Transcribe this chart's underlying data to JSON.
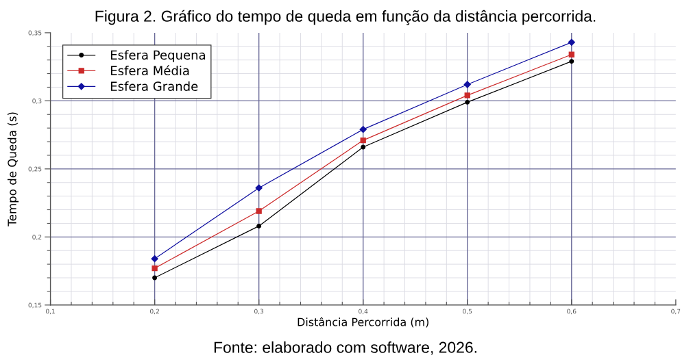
{
  "chart_data": {
    "type": "line",
    "title": "Figura 2. Gráfico do tempo de queda em função da distância percorrida.",
    "xlabel": "Distância Percorrida (m)",
    "ylabel": "Tempo de Queda (s)",
    "annotations": [
      "Fonte: elaborado com software, 2026."
    ],
    "x": [
      0.2,
      0.3,
      0.4,
      0.5,
      0.6
    ],
    "series": [
      {
        "name": "Esfera Pequena",
        "color": "#000000",
        "marker": "circle",
        "values": [
          0.17,
          0.208,
          0.266,
          0.299,
          0.329
        ]
      },
      {
        "name": "Esfera Média",
        "color": "#cc2a2a",
        "marker": "square",
        "values": [
          0.177,
          0.219,
          0.271,
          0.304,
          0.334
        ]
      },
      {
        "name": "Esfera Grande",
        "color": "#1010a0",
        "marker": "diamond",
        "values": [
          0.184,
          0.236,
          0.279,
          0.312,
          0.343
        ]
      }
    ],
    "xlim": [
      0.1,
      0.7
    ],
    "ylim": [
      0.15,
      0.35
    ],
    "xticks": [
      {
        "value": 0.1,
        "label": "0,1"
      },
      {
        "value": 0.12,
        "label": null
      },
      {
        "value": 0.14,
        "label": null
      },
      {
        "value": 0.16,
        "label": null
      },
      {
        "value": 0.18,
        "label": null
      },
      {
        "value": 0.2,
        "label": "0,2"
      },
      {
        "value": 0.22,
        "label": null
      },
      {
        "value": 0.24,
        "label": null
      },
      {
        "value": 0.26,
        "label": null
      },
      {
        "value": 0.28,
        "label": null
      },
      {
        "value": 0.3,
        "label": "0,3"
      },
      {
        "value": 0.32,
        "label": null
      },
      {
        "value": 0.34,
        "label": null
      },
      {
        "value": 0.36,
        "label": null
      },
      {
        "value": 0.38,
        "label": null
      },
      {
        "value": 0.4,
        "label": "0,4"
      },
      {
        "value": 0.42,
        "label": null
      },
      {
        "value": 0.44,
        "label": null
      },
      {
        "value": 0.46,
        "label": null
      },
      {
        "value": 0.48,
        "label": null
      },
      {
        "value": 0.5,
        "label": "0,5"
      },
      {
        "value": 0.52,
        "label": null
      },
      {
        "value": 0.54,
        "label": null
      },
      {
        "value": 0.56,
        "label": null
      },
      {
        "value": 0.58,
        "label": null
      },
      {
        "value": 0.6,
        "label": "0,6"
      },
      {
        "value": 0.62,
        "label": null
      },
      {
        "value": 0.64,
        "label": null
      },
      {
        "value": 0.66,
        "label": null
      },
      {
        "value": 0.68,
        "label": null
      },
      {
        "value": 0.7,
        "label": "0,7"
      }
    ],
    "yticks": [
      {
        "value": 0.15,
        "label": "0,15"
      },
      {
        "value": 0.16,
        "label": null
      },
      {
        "value": 0.17,
        "label": null
      },
      {
        "value": 0.18,
        "label": null
      },
      {
        "value": 0.19,
        "label": null
      },
      {
        "value": 0.2,
        "label": "0,2"
      },
      {
        "value": 0.21,
        "label": null
      },
      {
        "value": 0.22,
        "label": null
      },
      {
        "value": 0.23,
        "label": null
      },
      {
        "value": 0.24,
        "label": null
      },
      {
        "value": 0.25,
        "label": "0,25"
      },
      {
        "value": 0.26,
        "label": null
      },
      {
        "value": 0.27,
        "label": null
      },
      {
        "value": 0.28,
        "label": null
      },
      {
        "value": 0.29,
        "label": null
      },
      {
        "value": 0.3,
        "label": "0,3"
      },
      {
        "value": 0.31,
        "label": null
      },
      {
        "value": 0.32,
        "label": null
      },
      {
        "value": 0.33,
        "label": null
      },
      {
        "value": 0.34,
        "label": null
      },
      {
        "value": 0.35,
        "label": "0,35"
      }
    ],
    "grid": true,
    "legend": "top left",
    "line_style": "solid"
  }
}
